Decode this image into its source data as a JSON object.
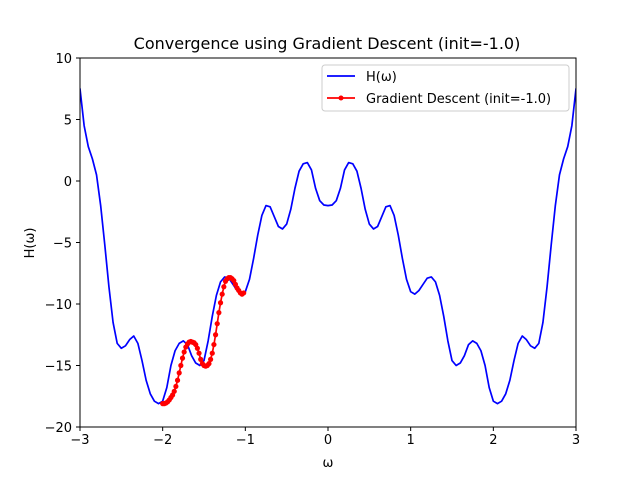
{
  "chart_data": {
    "type": "line",
    "title": "Convergence using Gradient Descent (init=-1.0)",
    "xlabel": "ω",
    "ylabel": "H(ω)",
    "xlim": [
      -3,
      3
    ],
    "ylim": [
      -20,
      10
    ],
    "xticks": [
      -3,
      -2,
      -1,
      0,
      1,
      2,
      3
    ],
    "yticks": [
      -20,
      -15,
      -10,
      -5,
      0,
      5,
      10
    ],
    "grid": false,
    "legend_position": "top-right",
    "series": [
      {
        "name": "H(ω)",
        "color": "#0000ff",
        "marker": "none",
        "x": [
          -3.0,
          -2.95,
          -2.9,
          -2.85,
          -2.8,
          -2.75,
          -2.7,
          -2.65,
          -2.6,
          -2.55,
          -2.5,
          -2.45,
          -2.4,
          -2.35,
          -2.3,
          -2.25,
          -2.2,
          -2.15,
          -2.1,
          -2.05,
          -2.0,
          -1.95,
          -1.9,
          -1.85,
          -1.8,
          -1.75,
          -1.7,
          -1.65,
          -1.6,
          -1.55,
          -1.5,
          -1.45,
          -1.4,
          -1.35,
          -1.3,
          -1.25,
          -1.2,
          -1.15,
          -1.1,
          -1.05,
          -1.0,
          -0.95,
          -0.9,
          -0.85,
          -0.8,
          -0.75,
          -0.7,
          -0.65,
          -0.6,
          -0.55,
          -0.5,
          -0.45,
          -0.4,
          -0.35,
          -0.3,
          -0.25,
          -0.2,
          -0.15,
          -0.1,
          -0.05,
          0.0,
          0.05,
          0.1,
          0.15,
          0.2,
          0.25,
          0.3,
          0.35,
          0.4,
          0.45,
          0.5,
          0.55,
          0.6,
          0.65,
          0.7,
          0.75,
          0.8,
          0.85,
          0.9,
          0.95,
          1.0,
          1.05,
          1.1,
          1.15,
          1.2,
          1.25,
          1.3,
          1.35,
          1.4,
          1.45,
          1.5,
          1.55,
          1.6,
          1.65,
          1.7,
          1.75,
          1.8,
          1.85,
          1.9,
          1.95,
          2.0,
          2.05,
          2.1,
          2.15,
          2.2,
          2.25,
          2.3,
          2.35,
          2.4,
          2.45,
          2.5,
          2.55,
          2.6,
          2.65,
          2.7,
          2.75,
          2.8,
          2.85,
          2.9,
          2.95,
          3.0
        ],
        "y": [
          7.5,
          4.5,
          2.8,
          1.8,
          0.5,
          -2.0,
          -5.2,
          -8.6,
          -11.5,
          -13.2,
          -13.6,
          -13.4,
          -12.9,
          -12.6,
          -13.2,
          -14.6,
          -16.2,
          -17.3,
          -17.9,
          -18.1,
          -17.9,
          -16.8,
          -15.0,
          -13.8,
          -13.2,
          -13.0,
          -13.3,
          -14.2,
          -14.8,
          -15.0,
          -14.6,
          -13.0,
          -11.0,
          -9.3,
          -8.2,
          -7.8,
          -7.9,
          -8.4,
          -8.9,
          -9.2,
          -9.0,
          -8.0,
          -6.3,
          -4.4,
          -2.8,
          -2.0,
          -2.1,
          -2.9,
          -3.7,
          -3.9,
          -3.5,
          -2.3,
          -0.6,
          0.8,
          1.4,
          1.5,
          0.9,
          -0.6,
          -1.6,
          -1.95,
          -2.0,
          -1.95,
          -1.6,
          -0.6,
          0.9,
          1.5,
          1.4,
          0.8,
          -0.6,
          -2.3,
          -3.5,
          -3.9,
          -3.7,
          -2.9,
          -2.1,
          -2.0,
          -2.8,
          -4.4,
          -6.3,
          -8.0,
          -9.0,
          -9.2,
          -8.9,
          -8.4,
          -7.9,
          -7.8,
          -8.2,
          -9.3,
          -11.0,
          -13.0,
          -14.6,
          -15.0,
          -14.8,
          -14.2,
          -13.3,
          -13.0,
          -13.2,
          -13.8,
          -15.0,
          -16.8,
          -17.9,
          -18.1,
          -17.9,
          -17.3,
          -16.2,
          -14.6,
          -13.2,
          -12.6,
          -12.9,
          -13.4,
          -13.6,
          -13.2,
          -11.5,
          -8.6,
          -5.2,
          -2.0,
          0.5,
          1.8,
          2.8,
          4.5,
          7.5
        ]
      },
      {
        "name": "Gradient Descent (init=-1.0)",
        "color": "#ff0000",
        "marker": "circle",
        "x": [
          -1.02,
          -1.04,
          -1.06,
          -1.08,
          -1.1,
          -1.12,
          -1.14,
          -1.16,
          -1.18,
          -1.2,
          -1.22,
          -1.24,
          -1.26,
          -1.28,
          -1.3,
          -1.32,
          -1.34,
          -1.36,
          -1.38,
          -1.4,
          -1.42,
          -1.44,
          -1.46,
          -1.48,
          -1.5,
          -1.52,
          -1.54,
          -1.56,
          -1.58,
          -1.6,
          -1.62,
          -1.64,
          -1.66,
          -1.68,
          -1.7,
          -1.72,
          -1.74,
          -1.76,
          -1.78,
          -1.8,
          -1.82,
          -1.84,
          -1.86,
          -1.88,
          -1.9,
          -1.92,
          -1.94,
          -1.96,
          -1.98,
          -2.0
        ],
        "y": [
          -9.1,
          -9.2,
          -9.1,
          -8.9,
          -8.7,
          -8.4,
          -8.1,
          -7.95,
          -7.85,
          -7.85,
          -7.95,
          -8.15,
          -8.6,
          -9.2,
          -9.9,
          -10.7,
          -11.6,
          -12.5,
          -13.3,
          -14.0,
          -14.5,
          -14.85,
          -15.0,
          -15.05,
          -15.0,
          -14.85,
          -14.5,
          -14.0,
          -13.6,
          -13.3,
          -13.15,
          -13.1,
          -13.05,
          -13.1,
          -13.25,
          -13.5,
          -13.9,
          -14.4,
          -15.0,
          -15.6,
          -16.2,
          -16.7,
          -17.1,
          -17.4,
          -17.6,
          -17.8,
          -17.95,
          -18.05,
          -18.1,
          -18.1
        ]
      }
    ]
  }
}
